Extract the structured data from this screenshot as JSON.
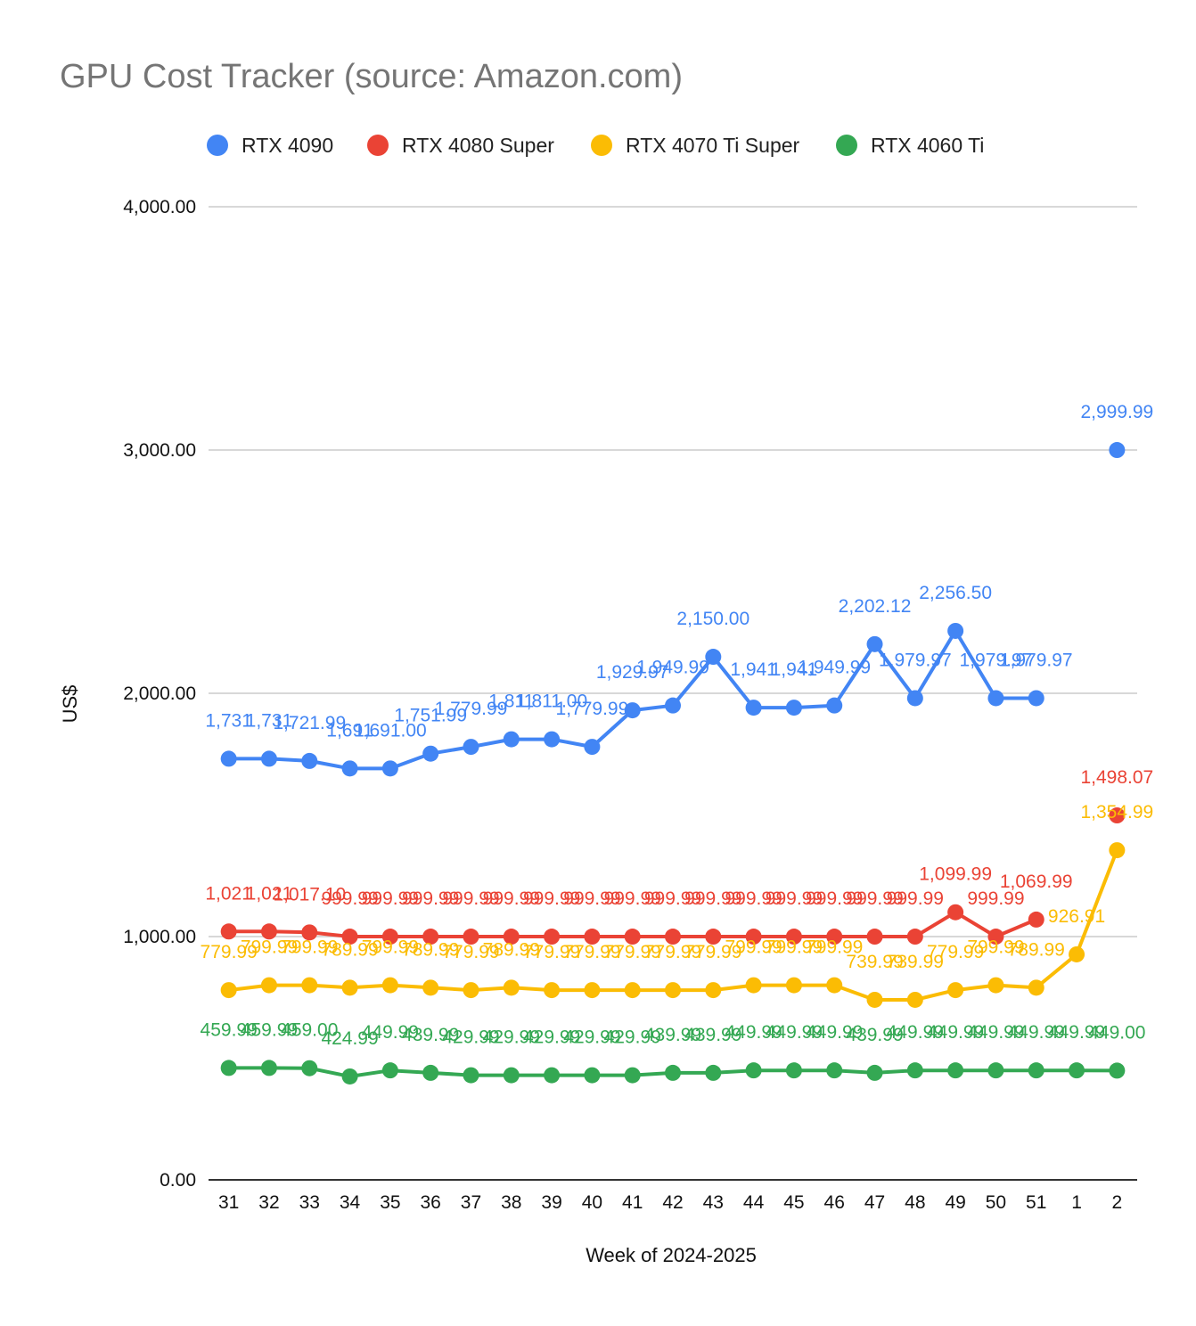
{
  "chart_data": {
    "type": "line",
    "title": "GPU Cost Tracker (source: Amazon.com)",
    "xlabel": "Week of 2024-2025",
    "ylabel": "US$",
    "ylim": [
      0,
      4000
    ],
    "y_ticks": [
      0,
      1000,
      2000,
      3000,
      4000
    ],
    "y_tick_labels": [
      "0.00",
      "1,000.00",
      "2,000.00",
      "3,000.00",
      "4,000.00"
    ],
    "categories": [
      "31",
      "32",
      "33",
      "34",
      "35",
      "36",
      "37",
      "38",
      "39",
      "40",
      "41",
      "42",
      "43",
      "44",
      "45",
      "46",
      "47",
      "48",
      "49",
      "50",
      "51",
      "1",
      "2"
    ],
    "grid": true,
    "legend_position": "top",
    "data_labels": true,
    "series": [
      {
        "name": "RTX 4090",
        "color": "#4285f4",
        "values": [
          1731,
          1731,
          1721.99,
          1691,
          1691,
          1751.99,
          1779.99,
          1811,
          1811,
          1779.99,
          1929.97,
          1949.99,
          2150.0,
          1941,
          1941,
          1949.99,
          2202.12,
          1979.97,
          2256.5,
          1979.97,
          1979.97,
          null,
          2999.99
        ],
        "labels": [
          "1,731",
          "1,731",
          "1,721.99",
          "1,691",
          "1,691.00",
          "1,751.99",
          "1,779.99",
          "1,811",
          "1,811.00",
          "1,779.99",
          "1,929.97",
          "1,949.99",
          "2,150.00",
          "1,941",
          "1,941",
          "1,949.99",
          "2,202.12",
          "1,979.97",
          "2,256.50",
          "1,979.97",
          "1,979.97",
          "",
          "2,999.99"
        ]
      },
      {
        "name": "RTX 4080 Super",
        "color": "#ea4335",
        "values": [
          1021,
          1021,
          1017.1,
          999.99,
          999.99,
          999.99,
          999.99,
          999.99,
          999.99,
          999.99,
          999.99,
          999.99,
          999.99,
          999.99,
          999.99,
          999.99,
          999.99,
          999.99,
          1099.99,
          999.99,
          1069.99,
          null,
          1498.07
        ],
        "labels": [
          "1,021",
          "1,021",
          "1,017.10",
          "999.99",
          "999.99",
          "999.99",
          "999.99",
          "999.99",
          "999.99",
          "999.99",
          "999.99",
          "999.99",
          "999.99",
          "999.99",
          "999.99",
          "999.99",
          "999.99",
          "999.99",
          "1,099.99",
          "999.99",
          "1,069.99",
          "",
          "1,498.07"
        ]
      },
      {
        "name": "RTX 4070 Ti Super",
        "color": "#fbbc04",
        "values": [
          779.99,
          799.99,
          799.99,
          789.99,
          799.99,
          789.99,
          779.99,
          789.99,
          779.99,
          779.99,
          779.99,
          779.99,
          779.99,
          799.99,
          799.99,
          799.99,
          739.99,
          739.99,
          779.99,
          799.99,
          789.99,
          926.91,
          1354.99
        ],
        "labels": [
          "779.99",
          "799.99",
          "799.99",
          "789.99",
          "799.99",
          "789.99",
          "779.99",
          "789.99",
          "779.99",
          "779.99",
          "779.99",
          "779.99",
          "779.99",
          "799.99",
          "799.99",
          "799.99",
          "739.99",
          "739.99",
          "779.99",
          "799.99",
          "789.99",
          "926.91",
          "1,354.99"
        ]
      },
      {
        "name": "RTX 4060 Ti",
        "color": "#34a853",
        "values": [
          459.99,
          459.99,
          459.0,
          424.99,
          449.99,
          439.99,
          429.99,
          429.99,
          429.99,
          429.99,
          429.99,
          439.99,
          439.99,
          449.99,
          449.99,
          449.99,
          439.99,
          449.99,
          449.99,
          449.99,
          449.99,
          449.99,
          449.0
        ],
        "labels": [
          "459.99",
          "459.99",
          "459.00",
          "424.99",
          "449.99",
          "439.99",
          "429.99",
          "429.99",
          "429.99",
          "429.99",
          "429.99",
          "439.99",
          "439.99",
          "449.99",
          "449.99",
          "449.99",
          "439.99",
          "449.99",
          "449.99",
          "449.99",
          "449.99",
          "449.99",
          "449.00"
        ]
      }
    ]
  }
}
